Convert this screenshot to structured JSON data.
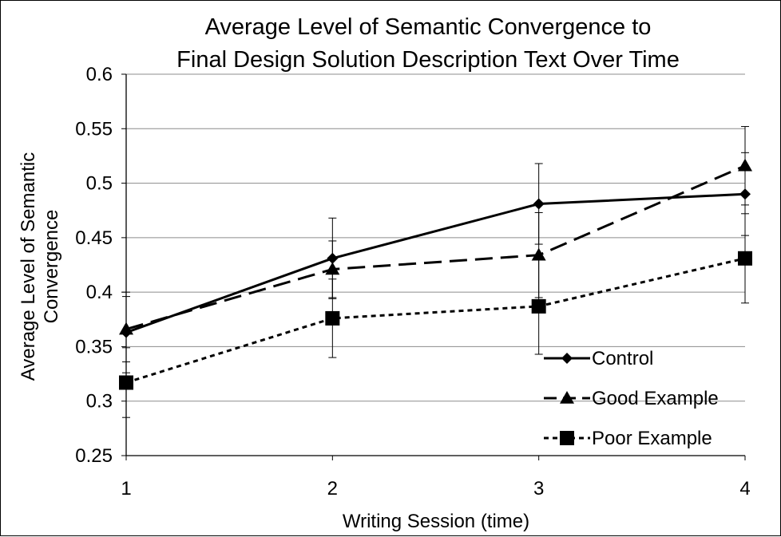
{
  "chart_data": {
    "type": "line",
    "title": [
      "Average Level of Semantic Convergence to",
      "Final Design Solution Description Text Over Time"
    ],
    "xlabel": "Writing Session (time)",
    "ylabel": [
      "Average Level of Semantic",
      "Convergence"
    ],
    "x": [
      1,
      2,
      3,
      4
    ],
    "xlim": [
      1,
      4
    ],
    "ylim": [
      0.25,
      0.6
    ],
    "yticks": [
      0.25,
      0.3,
      0.35,
      0.4,
      0.45,
      0.5,
      0.55,
      0.6
    ],
    "ytick_labels": [
      "0.25",
      "0.3",
      "0.35",
      "0.4",
      "0.45",
      "0.5",
      "0.55",
      "0.6"
    ],
    "xtick_labels": [
      "1",
      "2",
      "3",
      "4"
    ],
    "grid": "horizontal",
    "legend_position": "bottom-right",
    "series": [
      {
        "name": "Control",
        "values": [
          0.363,
          0.431,
          0.481,
          0.49
        ],
        "error": [
          0.037,
          0.037,
          0.037,
          0.038
        ],
        "marker": "diamond",
        "line_style": "solid"
      },
      {
        "name": "Good Example",
        "values": [
          0.366,
          0.421,
          0.434,
          0.516
        ],
        "error": [
          0.03,
          0.026,
          0.039,
          0.036
        ],
        "marker": "triangle",
        "line_style": "dashed"
      },
      {
        "name": "Poor Example",
        "values": [
          0.317,
          0.376,
          0.387,
          0.431
        ],
        "error": [
          0.032,
          0.036,
          0.044,
          0.041
        ],
        "marker": "square",
        "line_style": "dotted"
      }
    ]
  }
}
